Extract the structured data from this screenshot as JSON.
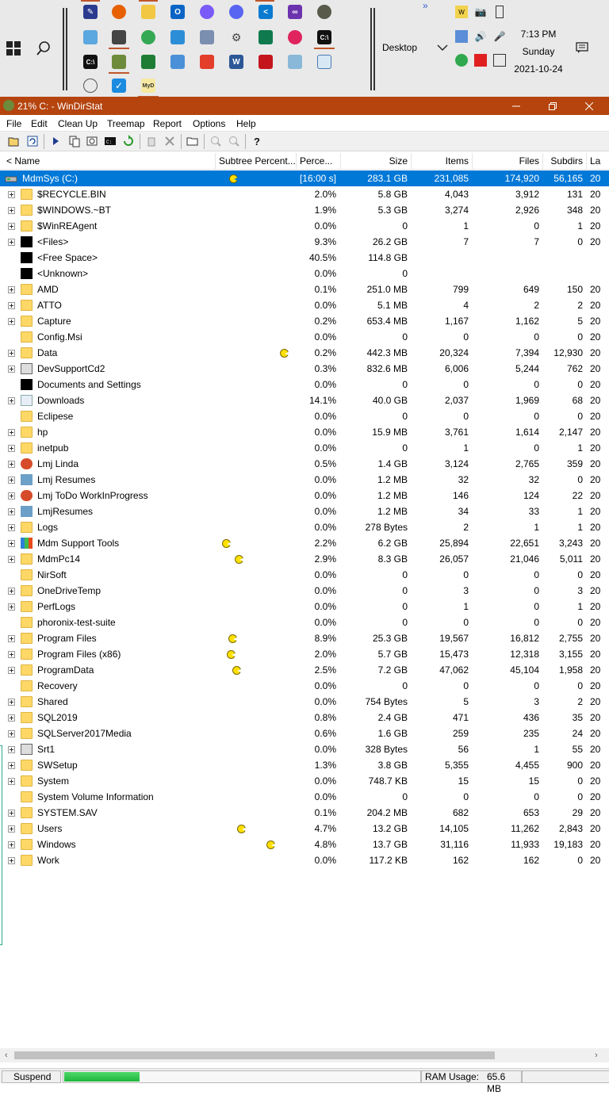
{
  "taskbar": {
    "desktop_label": "Desktop",
    "time": "7:13 PM",
    "day": "Sunday",
    "date": "2021-10-24",
    "overflow": "»"
  },
  "window": {
    "title": "21% C: - WinDirStat"
  },
  "menu": [
    "File",
    "Edit",
    "Clean Up",
    "Treemap",
    "Report",
    "Options",
    "Help"
  ],
  "columns": {
    "name": "< Name",
    "subtree": "Subtree Percent...",
    "percent": "Perce...",
    "size": "Size",
    "items": "Items",
    "files": "Files",
    "subdirs": "Subdirs",
    "last": "La"
  },
  "rows": [
    {
      "name": "MdmSys (C:)",
      "icon": "drive",
      "expand": false,
      "pac": true,
      "percent": "[16:00 s]",
      "size": "283.1 GB",
      "items": "231,085",
      "files": "174,920",
      "subdirs": "56,165",
      "last": "20"
    },
    {
      "name": "$RECYCLE.BIN",
      "icon": "folder",
      "expand": true,
      "pac": false,
      "percent": "2.0%",
      "size": "5.8 GB",
      "items": "4,043",
      "files": "3,912",
      "subdirs": "131",
      "last": "20"
    },
    {
      "name": "$WINDOWS.~BT",
      "icon": "folder",
      "expand": true,
      "pac": false,
      "percent": "1.9%",
      "size": "5.3 GB",
      "items": "3,274",
      "files": "2,926",
      "subdirs": "348",
      "last": "20"
    },
    {
      "name": "$WinREAgent",
      "icon": "folder",
      "expand": true,
      "pac": false,
      "percent": "0.0%",
      "size": "0",
      "items": "1",
      "files": "0",
      "subdirs": "1",
      "last": "20"
    },
    {
      "name": "<Files>",
      "icon": "black",
      "expand": true,
      "pac": false,
      "percent": "9.3%",
      "size": "26.2 GB",
      "items": "7",
      "files": "7",
      "subdirs": "0",
      "last": "20"
    },
    {
      "name": "<Free Space>",
      "icon": "black",
      "expand": false,
      "pac": false,
      "percent": "40.5%",
      "size": "114.8 GB",
      "items": "",
      "files": "",
      "subdirs": "",
      "last": ""
    },
    {
      "name": "<Unknown>",
      "icon": "black",
      "expand": false,
      "pac": false,
      "percent": "0.0%",
      "size": "0",
      "items": "",
      "files": "",
      "subdirs": "",
      "last": ""
    },
    {
      "name": "AMD",
      "icon": "folder",
      "expand": true,
      "pac": false,
      "percent": "0.1%",
      "size": "251.0 MB",
      "items": "799",
      "files": "649",
      "subdirs": "150",
      "last": "20"
    },
    {
      "name": "ATTO",
      "icon": "folder",
      "expand": true,
      "pac": false,
      "percent": "0.0%",
      "size": "5.1 MB",
      "items": "4",
      "files": "2",
      "subdirs": "2",
      "last": "20"
    },
    {
      "name": "Capture",
      "icon": "folder",
      "expand": true,
      "pac": false,
      "percent": "0.2%",
      "size": "653.4 MB",
      "items": "1,167",
      "files": "1,162",
      "subdirs": "5",
      "last": "20"
    },
    {
      "name": "Config.Msi",
      "icon": "folder",
      "expand": false,
      "pac": false,
      "percent": "0.0%",
      "size": "0",
      "items": "0",
      "files": "0",
      "subdirs": "0",
      "last": "20"
    },
    {
      "name": "Data",
      "icon": "folder",
      "expand": true,
      "pac": true,
      "pacx": 353,
      "percent": "0.2%",
      "size": "442.3 MB",
      "items": "20,324",
      "files": "7,394",
      "subdirs": "12,930",
      "last": "20"
    },
    {
      "name": "DevSupportCd2",
      "icon": "doc",
      "expand": true,
      "pac": false,
      "percent": "0.3%",
      "size": "832.6 MB",
      "items": "6,006",
      "files": "5,244",
      "subdirs": "762",
      "last": "20"
    },
    {
      "name": "Documents and Settings",
      "icon": "black",
      "expand": false,
      "pac": false,
      "percent": "0.0%",
      "size": "0",
      "items": "0",
      "files": "0",
      "subdirs": "0",
      "last": "20"
    },
    {
      "name": "Downloads",
      "icon": "dl",
      "expand": true,
      "pac": false,
      "percent": "14.1%",
      "size": "40.0 GB",
      "items": "2,037",
      "files": "1,969",
      "subdirs": "68",
      "last": "20"
    },
    {
      "name": "Eclipese",
      "icon": "folder",
      "expand": false,
      "pac": false,
      "percent": "0.0%",
      "size": "0",
      "items": "0",
      "files": "0",
      "subdirs": "0",
      "last": "20"
    },
    {
      "name": "hp",
      "icon": "folder",
      "expand": true,
      "pac": false,
      "percent": "0.0%",
      "size": "15.9 MB",
      "items": "3,761",
      "files": "1,614",
      "subdirs": "2,147",
      "last": "20"
    },
    {
      "name": "inetpub",
      "icon": "folder",
      "expand": true,
      "pac": false,
      "percent": "0.0%",
      "size": "0",
      "items": "1",
      "files": "0",
      "subdirs": "1",
      "last": "20"
    },
    {
      "name": "Lmj Linda",
      "icon": "app",
      "expand": true,
      "pac": false,
      "percent": "0.5%",
      "size": "1.4 GB",
      "items": "3,124",
      "files": "2,765",
      "subdirs": "359",
      "last": "20"
    },
    {
      "name": "Lmj Resumes",
      "icon": "pic",
      "expand": true,
      "pac": false,
      "percent": "0.0%",
      "size": "1.2 MB",
      "items": "32",
      "files": "32",
      "subdirs": "0",
      "last": "20"
    },
    {
      "name": "Lmj ToDo WorkInProgress",
      "icon": "app",
      "expand": true,
      "pac": false,
      "percent": "0.0%",
      "size": "1.2 MB",
      "items": "146",
      "files": "124",
      "subdirs": "22",
      "last": "20"
    },
    {
      "name": "LmjResumes",
      "icon": "pic",
      "expand": true,
      "pac": false,
      "percent": "0.0%",
      "size": "1.2 MB",
      "items": "34",
      "files": "33",
      "subdirs": "1",
      "last": "20"
    },
    {
      "name": "Logs",
      "icon": "folder",
      "expand": true,
      "pac": false,
      "percent": "0.0%",
      "size": "278 Bytes",
      "items": "2",
      "files": "1",
      "subdirs": "1",
      "last": "20"
    },
    {
      "name": "Mdm Support Tools",
      "icon": "multi",
      "expand": true,
      "pac": true,
      "pacx": 280,
      "percent": "2.2%",
      "size": "6.2 GB",
      "items": "25,894",
      "files": "22,651",
      "subdirs": "3,243",
      "last": "20"
    },
    {
      "name": "MdmPc14",
      "icon": "folder",
      "expand": true,
      "pac": true,
      "pacx": 296,
      "percent": "2.9%",
      "size": "8.3 GB",
      "items": "26,057",
      "files": "21,046",
      "subdirs": "5,011",
      "last": "20"
    },
    {
      "name": "NirSoft",
      "icon": "folder",
      "expand": false,
      "pac": false,
      "percent": "0.0%",
      "size": "0",
      "items": "0",
      "files": "0",
      "subdirs": "0",
      "last": "20"
    },
    {
      "name": "OneDriveTemp",
      "icon": "folder",
      "expand": true,
      "pac": false,
      "percent": "0.0%",
      "size": "0",
      "items": "3",
      "files": "0",
      "subdirs": "3",
      "last": "20"
    },
    {
      "name": "PerfLogs",
      "icon": "folder",
      "expand": true,
      "pac": false,
      "percent": "0.0%",
      "size": "0",
      "items": "1",
      "files": "0",
      "subdirs": "1",
      "last": "20"
    },
    {
      "name": "phoronix-test-suite",
      "icon": "folder",
      "expand": false,
      "pac": false,
      "percent": "0.0%",
      "size": "0",
      "items": "0",
      "files": "0",
      "subdirs": "0",
      "last": "20"
    },
    {
      "name": "Program Files",
      "icon": "folder",
      "expand": true,
      "pac": true,
      "pacx": 288,
      "percent": "8.9%",
      "size": "25.3 GB",
      "items": "19,567",
      "files": "16,812",
      "subdirs": "2,755",
      "last": "20"
    },
    {
      "name": "Program Files (x86)",
      "icon": "folder",
      "expand": true,
      "pac": true,
      "pacx": 286,
      "percent": "2.0%",
      "size": "5.7 GB",
      "items": "15,473",
      "files": "12,318",
      "subdirs": "3,155",
      "last": "20"
    },
    {
      "name": "ProgramData",
      "icon": "folder",
      "expand": true,
      "pac": true,
      "pacx": 293,
      "percent": "2.5%",
      "size": "7.2 GB",
      "items": "47,062",
      "files": "45,104",
      "subdirs": "1,958",
      "last": "20"
    },
    {
      "name": "Recovery",
      "icon": "folder",
      "expand": false,
      "pac": false,
      "percent": "0.0%",
      "size": "0",
      "items": "0",
      "files": "0",
      "subdirs": "0",
      "last": "20"
    },
    {
      "name": "Shared",
      "icon": "folder",
      "expand": true,
      "pac": false,
      "percent": "0.0%",
      "size": "754 Bytes",
      "items": "5",
      "files": "3",
      "subdirs": "2",
      "last": "20"
    },
    {
      "name": "SQL2019",
      "icon": "folder",
      "expand": true,
      "pac": false,
      "percent": "0.8%",
      "size": "2.4 GB",
      "items": "471",
      "files": "436",
      "subdirs": "35",
      "last": "20"
    },
    {
      "name": "SQLServer2017Media",
      "icon": "folder",
      "expand": true,
      "pac": false,
      "percent": "0.6%",
      "size": "1.6 GB",
      "items": "259",
      "files": "235",
      "subdirs": "24",
      "last": "20"
    },
    {
      "name": "Srt1",
      "icon": "doc",
      "expand": true,
      "pac": false,
      "percent": "0.0%",
      "size": "328 Bytes",
      "items": "56",
      "files": "1",
      "subdirs": "55",
      "last": "20"
    },
    {
      "name": "SWSetup",
      "icon": "folder",
      "expand": true,
      "pac": false,
      "percent": "1.3%",
      "size": "3.8 GB",
      "items": "5,355",
      "files": "4,455",
      "subdirs": "900",
      "last": "20"
    },
    {
      "name": "System",
      "icon": "folder",
      "expand": true,
      "pac": false,
      "percent": "0.0%",
      "size": "748.7 KB",
      "items": "15",
      "files": "15",
      "subdirs": "0",
      "last": "20"
    },
    {
      "name": "System Volume Information",
      "icon": "folder",
      "expand": false,
      "pac": false,
      "percent": "0.0%",
      "size": "0",
      "items": "0",
      "files": "0",
      "subdirs": "0",
      "last": "20"
    },
    {
      "name": "SYSTEM.SAV",
      "icon": "folder",
      "expand": true,
      "pac": false,
      "percent": "0.1%",
      "size": "204.2 MB",
      "items": "682",
      "files": "653",
      "subdirs": "29",
      "last": "20"
    },
    {
      "name": "Users",
      "icon": "folder",
      "expand": true,
      "pac": true,
      "pacx": 299,
      "percent": "4.7%",
      "size": "13.2 GB",
      "items": "14,105",
      "files": "11,262",
      "subdirs": "2,843",
      "last": "20"
    },
    {
      "name": "Windows",
      "icon": "folder",
      "expand": true,
      "pac": true,
      "pacx": 336,
      "percent": "4.8%",
      "size": "13.7 GB",
      "items": "31,116",
      "files": "11,933",
      "subdirs": "19,183",
      "last": "20"
    },
    {
      "name": "Work",
      "icon": "folder",
      "expand": true,
      "pac": false,
      "percent": "0.0%",
      "size": "117.2 KB",
      "items": "162",
      "files": "162",
      "subdirs": "0",
      "last": "20"
    }
  ],
  "status": {
    "suspend": "Suspend",
    "progress_fraction": 0.21,
    "ram_label": "RAM Usage:",
    "ram_value": "65.6 MB"
  },
  "colors": {
    "titlebar": "#b5440e",
    "selection": "#0078d7",
    "progress": "#1fb53c"
  }
}
